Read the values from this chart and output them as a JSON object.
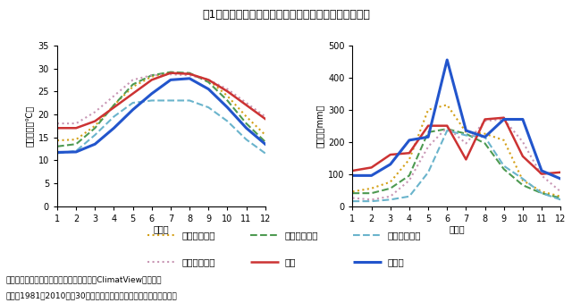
{
  "title": "図1　中国と日本のサトウキビ生産地の気象条件の比較",
  "months": [
    1,
    2,
    3,
    4,
    5,
    6,
    7,
    8,
    9,
    10,
    11,
    12
  ],
  "temp": {
    "guangdong": [
      14.3,
      14.5,
      17.5,
      22.0,
      26.0,
      28.2,
      29.1,
      28.8,
      27.5,
      24.0,
      19.5,
      15.5
    ],
    "guangxi": [
      13.0,
      13.5,
      17.0,
      22.0,
      26.5,
      28.5,
      29.2,
      29.0,
      27.0,
      23.0,
      18.0,
      14.0
    ],
    "yunnan": [
      11.5,
      12.0,
      15.5,
      19.5,
      22.5,
      23.0,
      23.0,
      23.0,
      21.5,
      18.5,
      14.5,
      11.5
    ],
    "hainan": [
      18.0,
      18.0,
      20.5,
      24.0,
      27.5,
      28.5,
      28.7,
      28.5,
      27.5,
      25.5,
      22.5,
      19.5
    ],
    "naha": [
      17.0,
      17.0,
      18.5,
      21.5,
      24.5,
      27.5,
      29.0,
      28.8,
      27.5,
      25.0,
      22.0,
      19.0
    ],
    "tanegashima": [
      11.7,
      11.8,
      13.5,
      17.0,
      21.0,
      24.5,
      27.5,
      27.8,
      25.5,
      21.5,
      17.0,
      13.5
    ]
  },
  "precip": {
    "guangdong": [
      45,
      55,
      75,
      145,
      300,
      315,
      230,
      225,
      205,
      80,
      45,
      30
    ],
    "guangxi": [
      40,
      40,
      55,
      95,
      230,
      240,
      225,
      195,
      115,
      65,
      40,
      25
    ],
    "yunnan": [
      15,
      15,
      20,
      30,
      105,
      235,
      220,
      215,
      125,
      85,
      40,
      20
    ],
    "hainan": [
      25,
      20,
      30,
      80,
      185,
      245,
      195,
      265,
      270,
      200,
      95,
      45
    ],
    "naha": [
      110,
      120,
      160,
      165,
      250,
      250,
      145,
      270,
      275,
      155,
      100,
      105
    ],
    "tanegashima": [
      95,
      95,
      130,
      205,
      215,
      455,
      235,
      215,
      270,
      270,
      110,
      85
    ]
  },
  "labels": {
    "guangdong": "広東（広州）",
    "guangxi": "広西（南宁）",
    "yunnan": "雲南（蒙自）",
    "hainan": "海南（海口）",
    "naha": "那覇",
    "tanegashima": "種子島"
  },
  "colors": {
    "guangdong": "#d4a017",
    "guangxi": "#4e9a51",
    "yunnan": "#6ab4cc",
    "hainan": "#c896b4",
    "naha": "#cc3333",
    "tanegashima": "#2255cc"
  },
  "styles": {
    "guangdong": "dotted",
    "guangxi": "dashed",
    "yunnan": "dashed",
    "hainan": "dotted",
    "naha": "solid",
    "tanegashima": "solid"
  },
  "linewidths": {
    "guangdong": 1.5,
    "guangxi": 1.5,
    "yunnan": 1.5,
    "hainan": 1.5,
    "naha": 1.8,
    "tanegashima": 2.2
  },
  "ylabel_temp": "平均気温（℃）",
  "ylabel_precip": "降水量（mm）",
  "xlabel": "（月）",
  "ylim_temp": [
    0,
    35
  ],
  "ylim_precip": [
    0,
    500
  ],
  "yticks_temp": [
    0,
    5,
    10,
    15,
    20,
    25,
    30,
    35
  ],
  "yticks_precip": [
    0,
    100,
    200,
    300,
    400,
    500
  ],
  "note_line1": "資料：気象庁「世界の天候データツール（ClimatView）」参照",
  "note_line2": "　注：1981～2010年の30年間の平均値を平年値として用いている。"
}
